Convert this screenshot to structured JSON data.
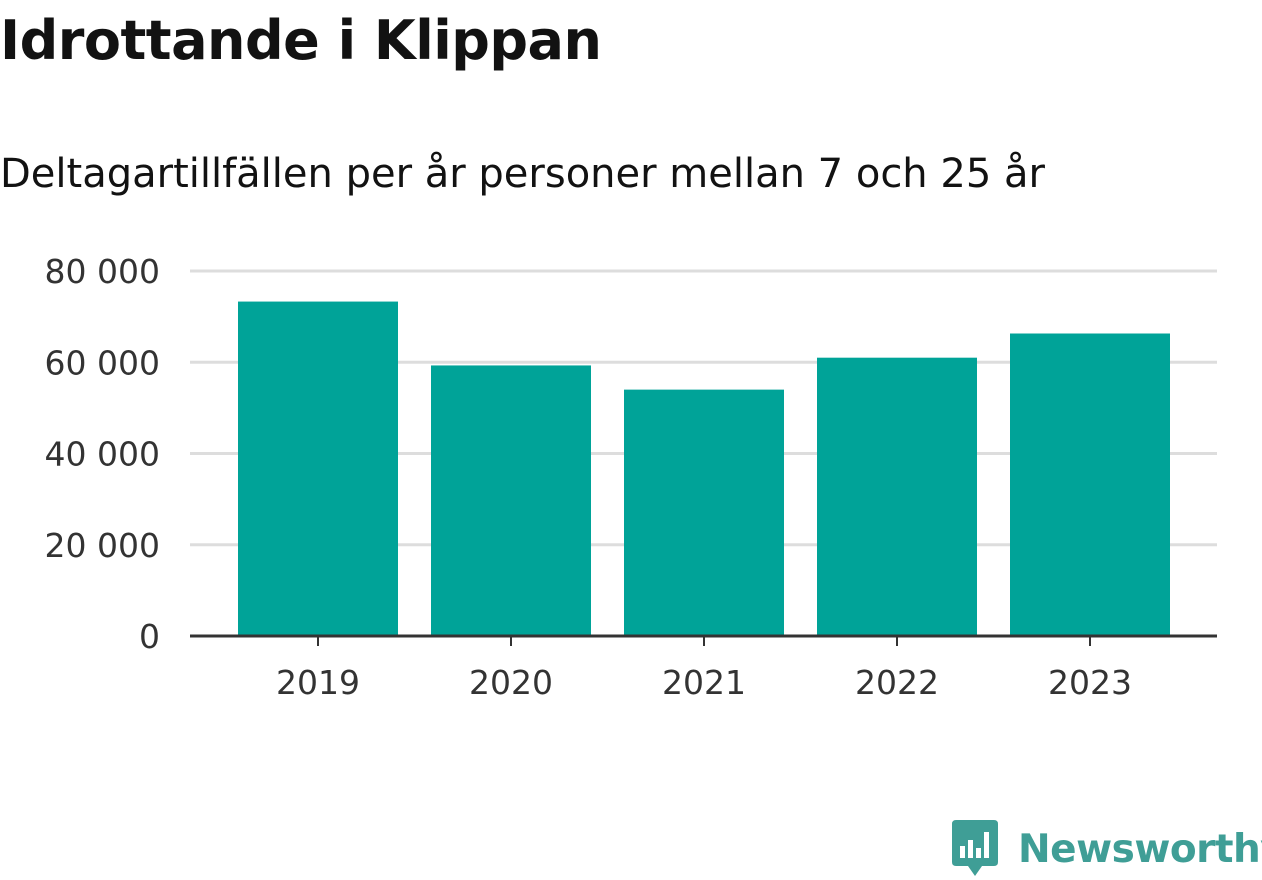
{
  "title": "Idrottande i Klippan",
  "subtitle": "Deltagartillfällen per år personer mellan 7 och 25 år",
  "logo": {
    "text": "Newsworthy",
    "color": "#3f9e96",
    "icon": "bar-chart-badge-icon"
  },
  "colors": {
    "bar": "#00a398",
    "grid": "#dddddd",
    "axis": "#333333"
  },
  "chart_data": {
    "type": "bar",
    "categories": [
      "2019",
      "2020",
      "2021",
      "2022",
      "2023"
    ],
    "values": [
      73300,
      59300,
      54000,
      61000,
      66300
    ],
    "title": "",
    "xlabel": "",
    "ylabel": "",
    "ylim": [
      0,
      80000
    ],
    "yticks": [
      0,
      20000,
      40000,
      60000,
      80000
    ],
    "ytick_labels": [
      "0",
      "20 000",
      "40 000",
      "60 000",
      "80 000"
    ],
    "grid": true
  }
}
